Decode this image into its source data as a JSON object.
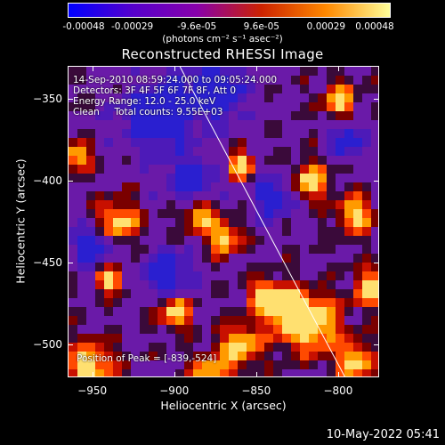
{
  "colorbar": {
    "ticks": [
      "-0.00048",
      "-0.00029",
      "-9.6e-05",
      "9.6e-05",
      "0.00029",
      "0.00048"
    ],
    "unit": "(photons cm⁻² s⁻¹ asec⁻²)",
    "colors": [
      "#0000ff",
      "#5500cc",
      "#8800aa",
      "#cc2200",
      "#ff8800",
      "#ffff99"
    ]
  },
  "chart_data": {
    "type": "heatmap",
    "title": "Reconstructed RHESSI Image",
    "xlabel": "Heliocentric X (arcsec)",
    "ylabel": "Heliocentric Y (arcsec)",
    "xlim": [
      -965,
      -775
    ],
    "ylim": [
      -520,
      -330
    ],
    "xticks": [
      -950,
      -900,
      -850,
      -800
    ],
    "yticks": [
      -350,
      -400,
      -450,
      -500
    ],
    "xtick_labels": [
      "−950",
      "−900",
      "−850",
      "−800"
    ],
    "ytick_labels": [
      "−350",
      "−400",
      "−450",
      "−500"
    ],
    "limb_line": [
      [
        -897,
        -330
      ],
      [
        -796,
        -520
      ]
    ],
    "peak": [
      -839,
      -524
    ],
    "hot_spots": [
      {
        "x": -935,
        "y": -425,
        "r": 9
      },
      {
        "x": -952,
        "y": -512,
        "r": 10
      },
      {
        "x": -815,
        "y": -488,
        "r": 12
      },
      {
        "x": -830,
        "y": -480,
        "r": 10
      },
      {
        "x": -790,
        "y": -420,
        "r": 8
      },
      {
        "x": -878,
        "y": -520,
        "r": 9
      },
      {
        "x": -860,
        "y": -500,
        "r": 9
      },
      {
        "x": -885,
        "y": -420,
        "r": 7
      },
      {
        "x": -870,
        "y": -435,
        "r": 7
      },
      {
        "x": -818,
        "y": -400,
        "r": 8
      },
      {
        "x": -780,
        "y": -465,
        "r": 8
      },
      {
        "x": -800,
        "y": -350,
        "r": 7
      },
      {
        "x": -845,
        "y": -470,
        "r": 7
      },
      {
        "x": -940,
        "y": -460,
        "r": 6
      },
      {
        "x": -900,
        "y": -480,
        "r": 7
      },
      {
        "x": -960,
        "y": -385,
        "r": 6
      },
      {
        "x": -790,
        "y": -510,
        "r": 8
      },
      {
        "x": -860,
        "y": -390,
        "r": 6
      }
    ],
    "cold_spots": [
      {
        "x": -910,
        "y": -360,
        "r": 16
      },
      {
        "x": -875,
        "y": -345,
        "r": 13
      },
      {
        "x": -890,
        "y": -400,
        "r": 10
      },
      {
        "x": -905,
        "y": -455,
        "r": 10
      },
      {
        "x": -950,
        "y": -440,
        "r": 9
      },
      {
        "x": -840,
        "y": -410,
        "r": 9
      },
      {
        "x": -795,
        "y": -375,
        "r": 7
      }
    ]
  },
  "annotations": {
    "line1": "14-Sep-2010 08:59:24.000 to 09:05:24.000",
    "line2": "Detectors: 3F 4F 5F 6F 7F 8F, Att 0",
    "line3": "Energy Range: 12.0 - 25.0 keV",
    "line4": "Clean     Total counts: 9.55E+03",
    "peak": "Position of Peak = [-839,-524]"
  },
  "footer": {
    "date": "10-May-2022 05:41"
  }
}
